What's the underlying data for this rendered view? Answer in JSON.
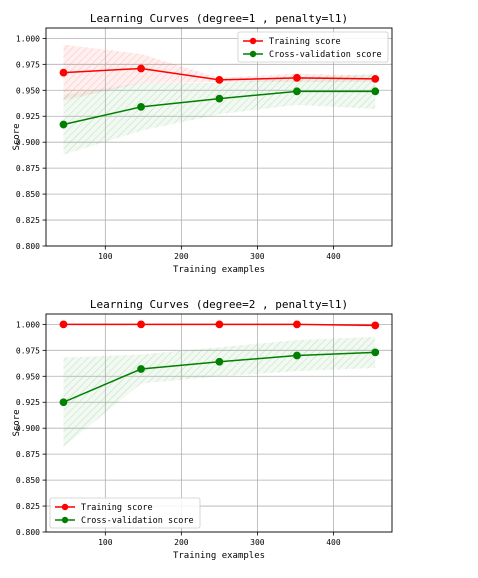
{
  "chart_data": [
    {
      "type": "line",
      "title": "Learning Curves (degree=1 , penalty=l1)",
      "xlabel": "Training examples",
      "ylabel": "Score",
      "xlim": [
        22,
        477
      ],
      "ylim": [
        0.8,
        1.01
      ],
      "x_ticks": [
        100,
        200,
        300,
        400
      ],
      "y_ticks": [
        0.8,
        0.825,
        0.85,
        0.875,
        0.9,
        0.925,
        0.95,
        0.975,
        1.0
      ],
      "x_tick_labels": [
        "100",
        "200",
        "300",
        "400"
      ],
      "y_tick_labels": [
        "0.800",
        "0.825",
        "0.850",
        "0.875",
        "0.900",
        "0.925",
        "0.950",
        "0.975",
        "1.000"
      ],
      "grid": true,
      "legend_position": "top-right",
      "x": [
        45,
        147,
        250,
        352,
        455
      ],
      "series": [
        {
          "name": "Training score",
          "color": "#ff0000",
          "values": [
            0.967,
            0.971,
            0.96,
            0.962,
            0.961
          ],
          "band_lower": [
            0.94,
            0.957,
            0.958,
            0.958,
            0.958
          ],
          "band_upper": [
            0.994,
            0.985,
            0.962,
            0.966,
            0.964
          ]
        },
        {
          "name": "Cross-validation score",
          "color": "#008000",
          "values": [
            0.917,
            0.934,
            0.942,
            0.949,
            0.949
          ],
          "band_lower": [
            0.888,
            0.911,
            0.927,
            0.936,
            0.932
          ],
          "band_upper": [
            0.946,
            0.957,
            0.957,
            0.962,
            0.966
          ]
        }
      ]
    },
    {
      "type": "line",
      "title": "Learning Curves (degree=2 , penalty=l1)",
      "xlabel": "Training examples",
      "ylabel": "Score",
      "xlim": [
        22,
        477
      ],
      "ylim": [
        0.8,
        1.01
      ],
      "x_ticks": [
        100,
        200,
        300,
        400
      ],
      "y_ticks": [
        0.8,
        0.825,
        0.85,
        0.875,
        0.9,
        0.925,
        0.95,
        0.975,
        1.0
      ],
      "x_tick_labels": [
        "100",
        "200",
        "300",
        "400"
      ],
      "y_tick_labels": [
        "0.800",
        "0.825",
        "0.850",
        "0.875",
        "0.900",
        "0.925",
        "0.950",
        "0.975",
        "1.000"
      ],
      "grid": true,
      "legend_position": "bottom-left",
      "x": [
        45,
        147,
        250,
        352,
        455
      ],
      "series": [
        {
          "name": "Training score",
          "color": "#ff0000",
          "values": [
            1.0,
            1.0,
            1.0,
            1.0,
            0.999
          ],
          "band_lower": [
            1.0,
            1.0,
            1.0,
            1.0,
            0.997
          ],
          "band_upper": [
            1.0,
            1.0,
            1.0,
            1.0,
            1.001
          ]
        },
        {
          "name": "Cross-validation score",
          "color": "#008000",
          "values": [
            0.925,
            0.957,
            0.964,
            0.97,
            0.973
          ],
          "band_lower": [
            0.882,
            0.943,
            0.95,
            0.955,
            0.958
          ],
          "band_upper": [
            0.968,
            0.971,
            0.978,
            0.985,
            0.988
          ]
        }
      ]
    }
  ]
}
